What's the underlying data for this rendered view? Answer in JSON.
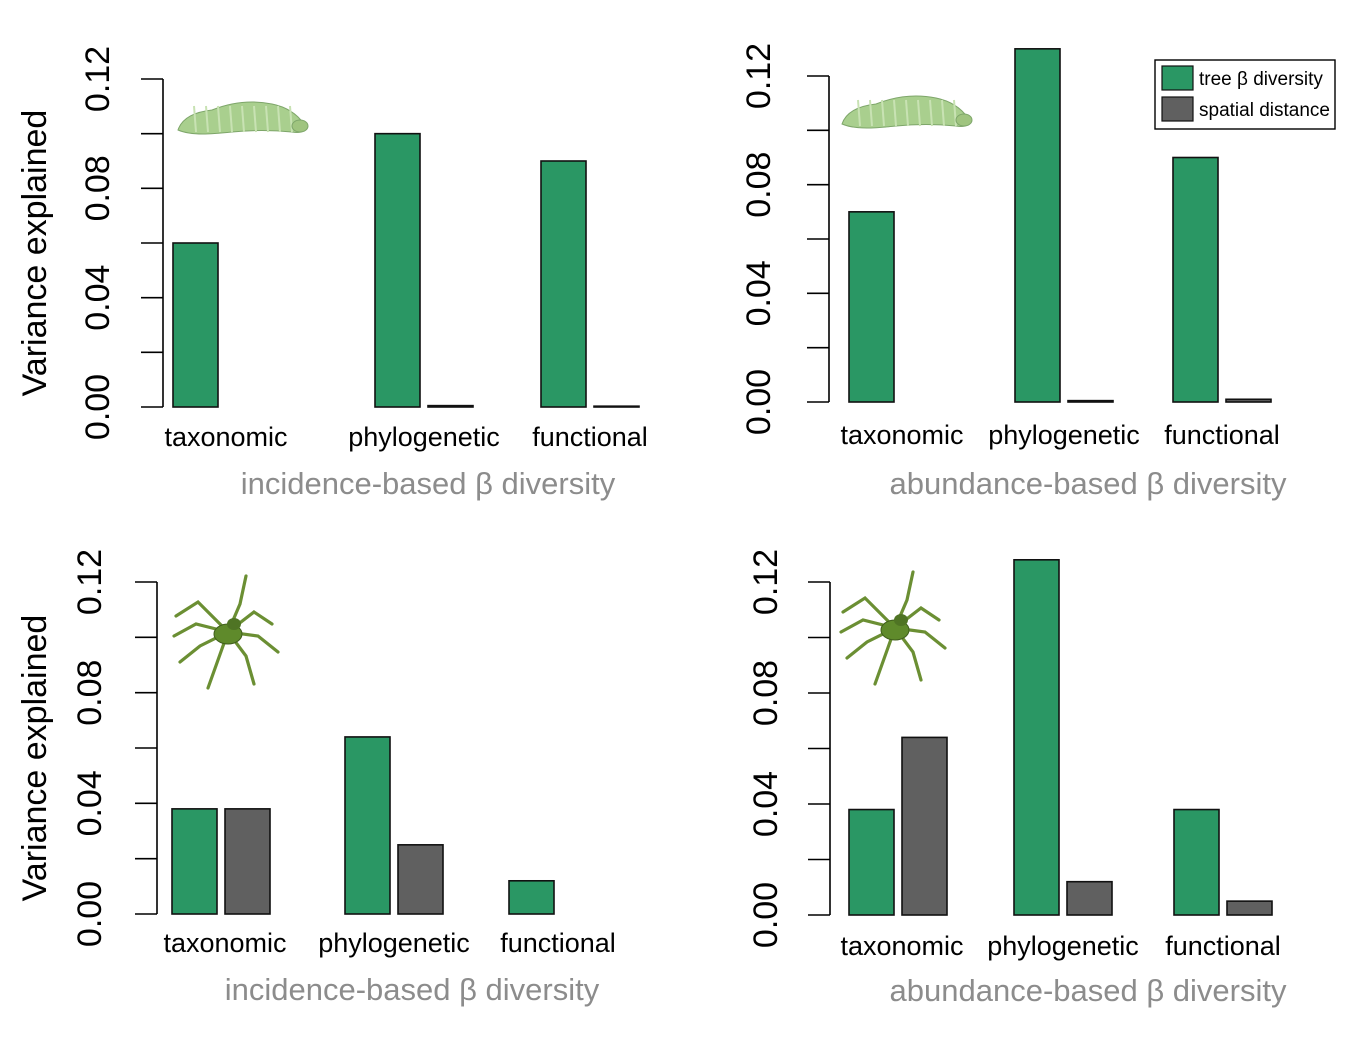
{
  "colors": {
    "tree": "#2a9764",
    "spatial": "#606060",
    "axis": "#000000",
    "xlabel": "#8c8c8c",
    "caterpillar_body": "#a9cf8e",
    "spider_body": "#5f8a2b"
  },
  "legend": {
    "items": [
      {
        "label": "tree β diversity",
        "color": "#2a9764"
      },
      {
        "label": "spatial distance",
        "color": "#606060"
      }
    ],
    "position": "top-right of top-right panel"
  },
  "chart_data": [
    {
      "type": "bar",
      "panel": "top-left",
      "icon": "caterpillar-icon",
      "ylabel": "Variance explained",
      "xlabel": "incidence-based β diversity",
      "ylim": [
        0,
        0.12
      ],
      "yticks": [
        "0.00",
        "0.04",
        "0.08",
        "0.12"
      ],
      "categories": [
        "taxonomic",
        "phylogenetic",
        "functional"
      ],
      "series": [
        {
          "name": "tree β diversity",
          "values": [
            0.06,
            0.1,
            0.09
          ]
        },
        {
          "name": "spatial distance",
          "values": [
            0.0,
            0.0005,
            0.0003
          ]
        }
      ]
    },
    {
      "type": "bar",
      "panel": "top-right",
      "icon": "caterpillar-icon",
      "ylabel": "",
      "xlabel": "abundance-based β diversity",
      "ylim": [
        0,
        0.12
      ],
      "yticks": [
        "0.00",
        "0.04",
        "0.08",
        "0.12"
      ],
      "categories": [
        "taxonomic",
        "phylogenetic",
        "functional"
      ],
      "series": [
        {
          "name": "tree β diversity",
          "values": [
            0.07,
            0.13,
            0.09
          ]
        },
        {
          "name": "spatial distance",
          "values": [
            0.0,
            0.0005,
            0.001
          ]
        }
      ]
    },
    {
      "type": "bar",
      "panel": "bottom-left",
      "icon": "spider-icon",
      "ylabel": "Variance explained",
      "xlabel": "incidence-based β diversity",
      "ylim": [
        0,
        0.12
      ],
      "yticks": [
        "0.00",
        "0.04",
        "0.08",
        "0.12"
      ],
      "categories": [
        "taxonomic",
        "phylogenetic",
        "functional"
      ],
      "series": [
        {
          "name": "tree β diversity",
          "values": [
            0.038,
            0.064,
            0.012
          ]
        },
        {
          "name": "spatial distance",
          "values": [
            0.038,
            0.025,
            0.0
          ]
        }
      ]
    },
    {
      "type": "bar",
      "panel": "bottom-right",
      "icon": "spider-icon",
      "ylabel": "",
      "xlabel": "abundance-based β diversity",
      "ylim": [
        0,
        0.12
      ],
      "yticks": [
        "0.00",
        "0.04",
        "0.08",
        "0.12"
      ],
      "categories": [
        "taxonomic",
        "phylogenetic",
        "functional"
      ],
      "series": [
        {
          "name": "tree β diversity",
          "values": [
            0.038,
            0.128,
            0.038
          ]
        },
        {
          "name": "spatial distance",
          "values": [
            0.064,
            0.012,
            0.005
          ]
        }
      ]
    }
  ]
}
